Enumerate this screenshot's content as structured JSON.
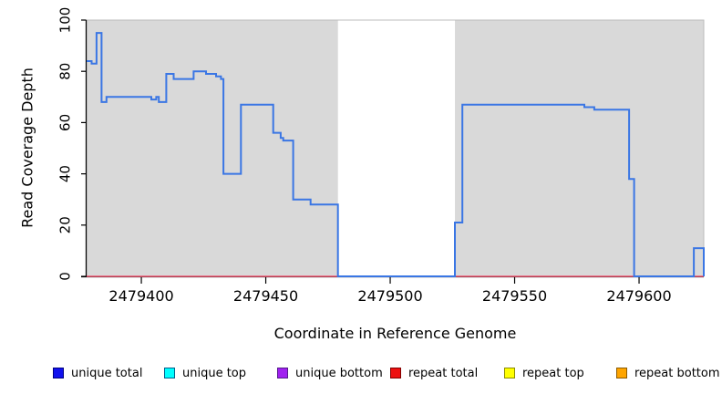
{
  "figure": {
    "xlabel": "Coordinate in Reference Genome",
    "ylabel": "Read Coverage Depth"
  },
  "chart_data": {
    "type": "line",
    "subtype": "step-coverage",
    "title": "",
    "xlabel": "Coordinate in Reference Genome",
    "ylabel": "Read Coverage Depth",
    "xlim": [
      2479378,
      2479626
    ],
    "ylim": [
      0,
      100
    ],
    "x_ticks": [
      2479400,
      2479450,
      2479500,
      2479550,
      2479600
    ],
    "y_ticks": [
      0,
      20,
      40,
      60,
      80,
      100
    ],
    "grid": false,
    "plot_background": "#d9d9d9",
    "plot_border_color": "#bdbdbd",
    "axis_color": "#000000",
    "gap_region": {
      "x0": 2479479,
      "x1": 2479526,
      "color": "#ffffff"
    },
    "series": [
      {
        "name": "unique total",
        "color": "#3a76e4",
        "width": 2,
        "style": "step",
        "segments": [
          [
            2479378,
            2479380,
            84
          ],
          [
            2479380,
            2479382,
            83
          ],
          [
            2479382,
            2479384,
            95
          ],
          [
            2479384,
            2479386,
            68
          ],
          [
            2479386,
            2479404,
            70
          ],
          [
            2479404,
            2479406,
            69
          ],
          [
            2479406,
            2479407,
            70
          ],
          [
            2479407,
            2479410,
            68
          ],
          [
            2479410,
            2479413,
            79
          ],
          [
            2479413,
            2479421,
            77
          ],
          [
            2479421,
            2479426,
            80
          ],
          [
            2479426,
            2479430,
            79
          ],
          [
            2479430,
            2479432,
            78
          ],
          [
            2479432,
            2479433,
            77
          ],
          [
            2479433,
            2479440,
            40
          ],
          [
            2479440,
            2479453,
            67
          ],
          [
            2479453,
            2479456,
            56
          ],
          [
            2479456,
            2479457,
            54
          ],
          [
            2479457,
            2479461,
            53
          ],
          [
            2479461,
            2479468,
            30
          ],
          [
            2479468,
            2479479,
            28
          ],
          [
            2479479,
            2479526,
            0
          ],
          [
            2479526,
            2479529,
            21
          ],
          [
            2479529,
            2479578,
            67
          ],
          [
            2479578,
            2479582,
            66
          ],
          [
            2479582,
            2479596,
            65
          ],
          [
            2479596,
            2479598,
            38
          ],
          [
            2479598,
            2479622,
            0
          ],
          [
            2479622,
            2479626,
            11
          ]
        ]
      },
      {
        "name": "repeat total",
        "color": "#ee5570",
        "width": 1.5,
        "style": "step",
        "segments": [
          [
            2479378,
            2479626,
            0
          ]
        ]
      }
    ],
    "legend_position": "bottom"
  },
  "legend": {
    "items": [
      {
        "label": "unique total",
        "fill": "#1111ee",
        "border": "#000080"
      },
      {
        "label": "unique top",
        "fill": "#00ffff",
        "border": "#005f8b"
      },
      {
        "label": "unique bottom",
        "fill": "#a020f0",
        "border": "#551a8b"
      },
      {
        "label": "repeat total",
        "fill": "#ee1111",
        "border": "#800000"
      },
      {
        "label": "repeat top",
        "fill": "#ffff00",
        "border": "#8b8b00"
      },
      {
        "label": "repeat bottom",
        "fill": "#ffa500",
        "border": "#8b5a00"
      }
    ]
  }
}
